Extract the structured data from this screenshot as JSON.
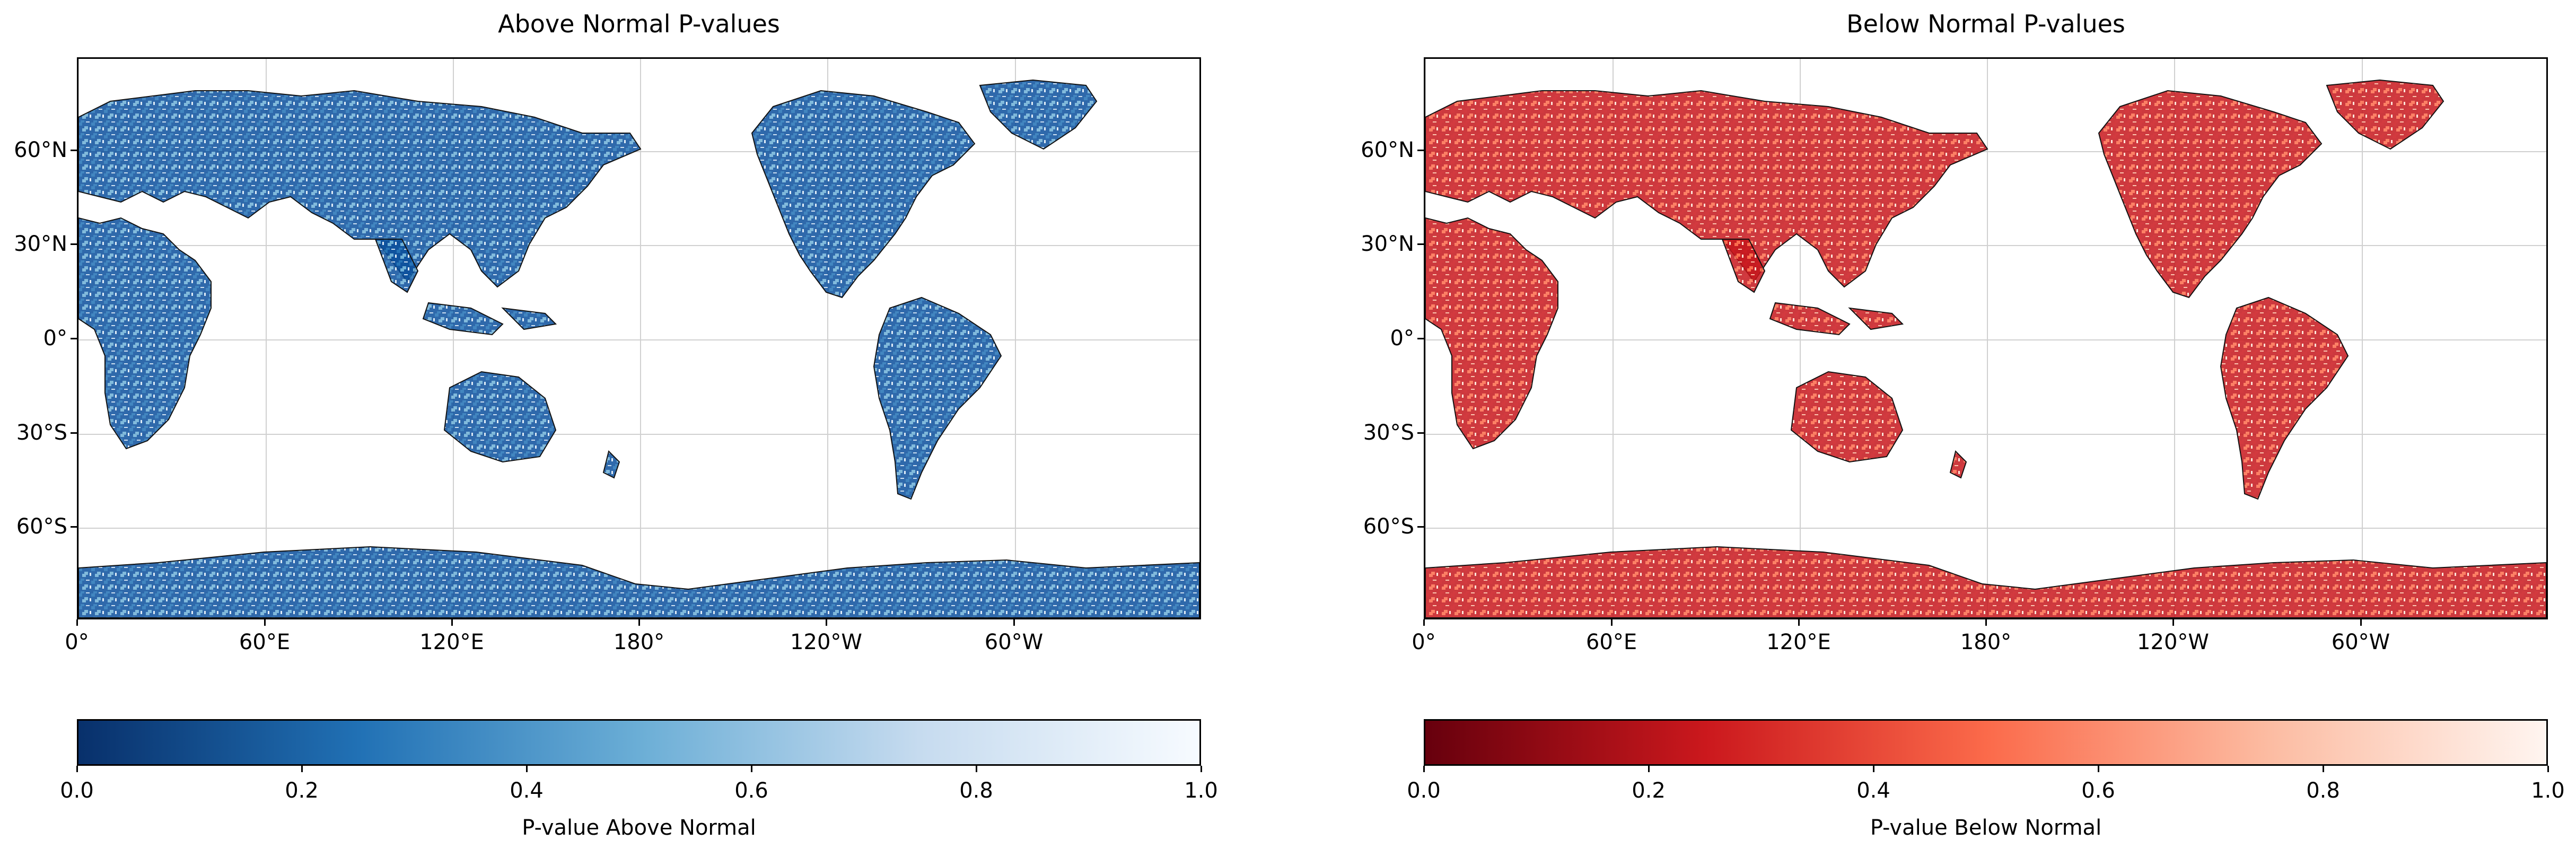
{
  "panels": [
    {
      "title": "Above Normal P-values",
      "colorbar_label": "P-value Above Normal",
      "colormap": [
        "#08306b",
        "#2171b5",
        "#6baed6",
        "#c6dbef",
        "#f7fbff"
      ],
      "land_color_dark": "#0b4f9c",
      "land_color_light": "#dbe9f6"
    },
    {
      "title": "Below Normal P-values",
      "colorbar_label": "P-value Below Normal",
      "colormap": [
        "#67000d",
        "#cb181d",
        "#fb6a4a",
        "#fcbba1",
        "#fff5f0"
      ],
      "land_color_dark": "#c4161c",
      "land_color_light": "#fde0d2"
    }
  ],
  "x_ticks": [
    "0°",
    "60°E",
    "120°E",
    "180°",
    "120°W",
    "60°W"
  ],
  "y_ticks": [
    "60°N",
    "30°N",
    "0°",
    "30°S",
    "60°S"
  ],
  "colorbar_ticks": [
    "0.0",
    "0.2",
    "0.4",
    "0.6",
    "0.8",
    "1.0"
  ],
  "colorbar_range": [
    0.0,
    1.0
  ]
}
